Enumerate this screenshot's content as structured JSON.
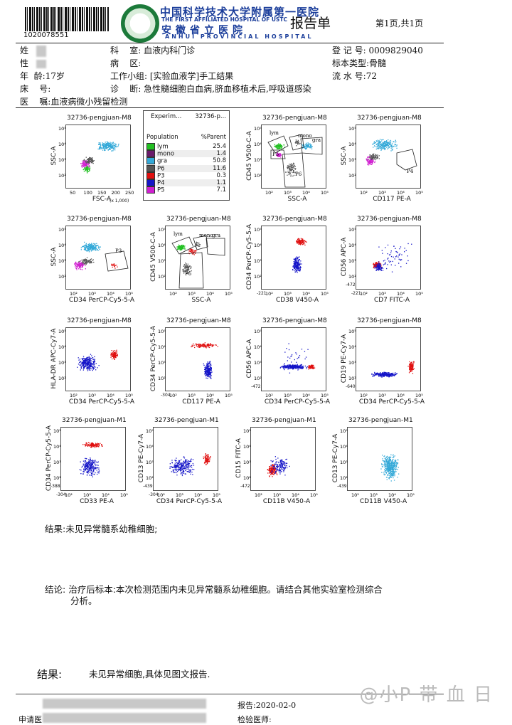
{
  "header": {
    "barcode_number": "1020078551",
    "hospital_cn": "中国科学技术大学附属第一医院",
    "hospital_en": "THE FIRST AFFILIATED HOSPITAL OF USTC",
    "hospital_cn2": "安徽省立医院",
    "hospital_en2": "ANHUI PROVINCIAL HOSPITAL",
    "report_title": "报告单",
    "page_info": "第1页,共1页"
  },
  "patient": {
    "name_label": "姓",
    "sex_label": "性",
    "age_label": "年",
    "age_value": "龄:17岁",
    "bed_label": "床",
    "bed_value": "号:",
    "dept_label": "科",
    "dept_value": "室: 血液内科门诊",
    "ward_label": "病",
    "ward_value": "区:",
    "group_label": "工作小组:",
    "group_value": "[实验血液学]手工结果",
    "diag_label": "诊",
    "diag_value": "断: 急性髓细胞白血病,脐血移植术后,呼吸道感染",
    "reg_label": "登 记 号:",
    "reg_value": "0009829040",
    "specimen_label": "标本类型:",
    "specimen_value": "骨髓",
    "serial_label": "流 水 号:",
    "serial_value": "72",
    "order_label": "医",
    "order_value": "嘱:血液病微小残留检测"
  },
  "legend": {
    "header_left": "Experim...",
    "header_right": "32736-p...",
    "col_population": "Population",
    "col_parent": "%Parent",
    "rows": [
      {
        "name": "lym",
        "value": "25.4",
        "color": "#22c022"
      },
      {
        "name": "mono",
        "value": "1.4",
        "color": "#6a1a6a"
      },
      {
        "name": "gra",
        "value": "50.8",
        "color": "#33a9d8"
      },
      {
        "name": "P6",
        "value": "11.6",
        "color": "#555555"
      },
      {
        "name": "P3",
        "value": "0.3",
        "color": "#e01010"
      },
      {
        "name": "P4",
        "value": "1.1",
        "color": "#1515c8"
      },
      {
        "name": "P5",
        "value": "7.1",
        "color": "#d020d0"
      }
    ]
  },
  "plots": [
    {
      "title": "32736-pengjuan-M8",
      "xlabel": "FSC-A",
      "ylabel": "SSC-A",
      "ticks": [
        "50",
        "100",
        "150",
        "200",
        "250"
      ],
      "extra": "(x 1,000)"
    },
    {
      "title": "32736-pengjuan-M8",
      "xlabel": "SSC-A",
      "ylabel": "CD45 V500-C-A",
      "gates": [
        "lym",
        "mono",
        "gra",
        "P5",
        "P6"
      ]
    },
    {
      "title": "32736-pengjuan-M8",
      "xlabel": "CD117 PE-A",
      "ylabel": "SSC-A",
      "gates": [
        "P4"
      ]
    },
    {
      "title": "32736-pengjuan-M8",
      "xlabel": "CD34 PerCP-Cy5-5-A",
      "ylabel": "SSC-A",
      "gates": [
        "P3"
      ]
    },
    {
      "title": "32736-pengjuan-M8",
      "xlabel": "SSC-A",
      "ylabel": "CD45 V500-C-A",
      "gates": [
        "lym",
        "mono",
        "gra",
        "P6"
      ]
    },
    {
      "title": "32736-pengjuan-M8",
      "xlabel": "CD38 V450-A",
      "ylabel": "CD34 PerCP-Cy5-5-A",
      "neg": "-221"
    },
    {
      "title": "32736-pengjuan-M8",
      "xlabel": "CD7 FITC-A",
      "ylabel": "CD56 APC-A",
      "neg": "-221",
      "negy": "-472"
    },
    {
      "title": "32736-pengjuan-M8",
      "xlabel": "CD34 PerCP-Cy5-5-A",
      "ylabel": "HLA-DR APC-Cy7-A"
    },
    {
      "title": "32736-pengjuan-M8",
      "xlabel": "CD117 PE-A",
      "ylabel": "CD34 PerCP-Cy5-5-A",
      "neg": "-304"
    },
    {
      "title": "32736-pengjuan-M8",
      "xlabel": "CD34 PerCP-Cy5-5-A",
      "ylabel": "CD56 APC-A",
      "negy": "-472"
    },
    {
      "title": "32736-pengjuan-M8",
      "xlabel": "CD34 PerCP-Cy5-5-A",
      "ylabel": "CD19 PE-Cy7-A",
      "negy": "-640"
    },
    {
      "title": "32736-pengjuan-M1",
      "xlabel": "CD33 PE-A",
      "ylabel": "CD34 PerCP-Cy5-5-A",
      "neg": "-304",
      "negy": "-388"
    },
    {
      "title": "32736-pengjuan-M1",
      "xlabel": "CD34 PerCP-Cy5-5-A",
      "ylabel": "CD13 PE-Cy7-A",
      "neg": "-304",
      "negy": "-439"
    },
    {
      "title": "32736-pengjuan-M1",
      "xlabel": "CD11B V450-A",
      "ylabel": "CD15 FITC-A",
      "negy": "-472"
    },
    {
      "title": "32736-pengjuan-M1",
      "xlabel": "CD11B V450-A",
      "ylabel": "CD13 PE-Cy7-A",
      "negy": "-439"
    }
  ],
  "results": {
    "result_label": "结果:",
    "result_text": "未见异常髓系幼稚细胞;",
    "conclusion_label": "结论:",
    "conclusion_text_1": "治疗后标本:本次检测范围内未见异常髓系幼稚细胞。请结合其他实验室检测综合",
    "conclusion_text_2": "分析。",
    "final_label": "结果:",
    "final_text": "未见异常细胞,具体见图文报告."
  },
  "footer": {
    "report_label": "报告:",
    "report_date": "2020-02-0",
    "requester_label": "申请医",
    "examiner_label": "检验医师:",
    "watermark": "@小P 带 血 日"
  }
}
